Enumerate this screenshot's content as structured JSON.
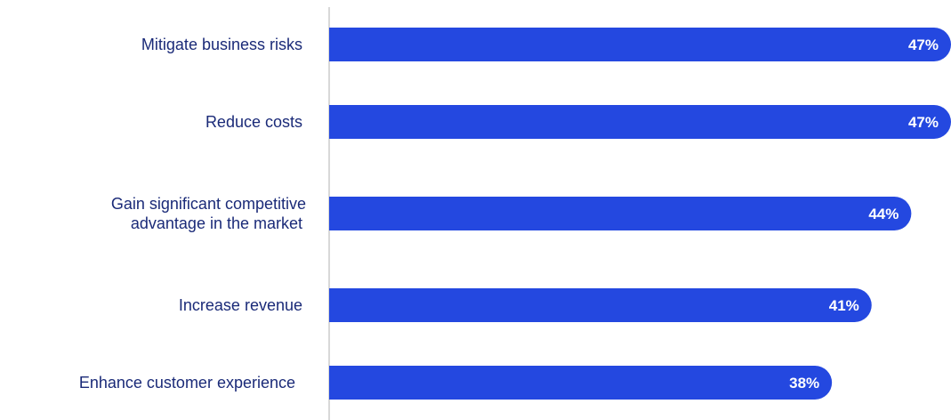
{
  "colors": {
    "bar": "#2448e0",
    "label_text": "#1a2a78",
    "value_text": "#ffffff",
    "axis_line": "#bfbfbf"
  },
  "chart_data": {
    "type": "bar",
    "orientation": "horizontal",
    "categories": [
      [
        "Mitigate business risks"
      ],
      [
        "Reduce costs"
      ],
      [
        "Gain significant competitive",
        "advantage in the market"
      ],
      [
        "Increase revenue"
      ],
      [
        "Enhance customer experience"
      ]
    ],
    "values": [
      47,
      47,
      44,
      41,
      38
    ],
    "value_labels": [
      "47%",
      "47%",
      "44%",
      "41%",
      "38%"
    ],
    "xlim": [
      0,
      47
    ],
    "grid": false,
    "legend": "none"
  }
}
